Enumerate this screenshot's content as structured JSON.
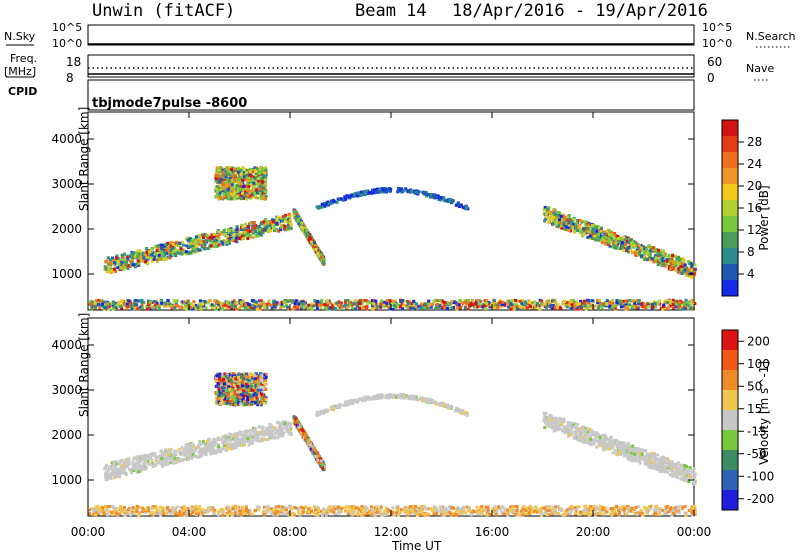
{
  "header": {
    "station": "Unwin (fitACF)",
    "beam": "Beam 14",
    "date_range": "18/Apr/2016 - 19/Apr/2016"
  },
  "top_panels": {
    "nsky_label": "N.Sky",
    "nsearch_label": "N.Search",
    "noise_ticks_left": [
      "10^5",
      "10^0"
    ],
    "noise_ticks_right": [
      "10^5",
      "10^0"
    ],
    "freq_label_1": "Freq.",
    "freq_label_2": "[MHz]",
    "freq_ticks": [
      "18",
      "8"
    ],
    "nave_ticks": [
      "60",
      "0"
    ],
    "nave_label": "Nave",
    "cpid_label": "CPID",
    "cpid_value": "tbjmode7pulse  -8600"
  },
  "chart_data": [
    {
      "type": "heatmap",
      "name": "power",
      "ylabel": "Slant Range [km]",
      "xlabel": "",
      "y_ticks": [
        "1000",
        "2000",
        "3000",
        "4000"
      ],
      "ylim": [
        200,
        4600
      ],
      "colorbar": {
        "label": "Power [dB]",
        "ticks": [
          "4",
          "8",
          "12",
          "16",
          "20",
          "24",
          "28"
        ],
        "range": [
          0,
          32
        ],
        "colors": [
          "#1428e6",
          "#1e5ab4",
          "#2e8c8c",
          "#4aa05a",
          "#78c83c",
          "#b4d232",
          "#f0c81e",
          "#f09628",
          "#f06e1e",
          "#e63c14",
          "#d21414"
        ]
      },
      "features": [
        {
          "desc": "band",
          "x_hours": [
            0.6,
            8.0
          ],
          "range_km": [
            1200,
            2400
          ],
          "level": "high"
        },
        {
          "desc": "band",
          "x_hours": [
            5.0,
            7.0
          ],
          "range_km": [
            2700,
            3400
          ],
          "level": "high"
        },
        {
          "desc": "descending",
          "x_hours": [
            8.1,
            9.3
          ],
          "range_km": [
            1300,
            2400
          ],
          "level": "high"
        },
        {
          "desc": "arc",
          "x_hours": [
            9.0,
            15.0
          ],
          "range_km": [
            2500,
            2900
          ],
          "level": "low"
        },
        {
          "desc": "band",
          "x_hours": [
            18.0,
            24.0
          ],
          "range_km": [
            1100,
            2600
          ],
          "level": "high"
        },
        {
          "desc": "ground",
          "x_hours": [
            0.0,
            24.0
          ],
          "range_km": [
            250,
            450
          ],
          "level": "mixed"
        }
      ]
    },
    {
      "type": "heatmap",
      "name": "velocity",
      "ylabel": "Slant Range [km]",
      "xlabel": "Time UT",
      "x_ticks": [
        "00:00",
        "04:00",
        "08:00",
        "12:00",
        "16:00",
        "20:00",
        "00:00"
      ],
      "y_ticks": [
        "1000",
        "2000",
        "3000",
        "4000"
      ],
      "ylim": [
        200,
        4600
      ],
      "colorbar": {
        "label": "Velocity [m s^-1]",
        "ticks": [
          "200",
          "100",
          "50",
          "15",
          "-15",
          "-50",
          "-100",
          "-200"
        ],
        "colors": [
          "#1e1edc",
          "#2d64b4",
          "#3c8c64",
          "#78c83c",
          "#c8c8c8",
          "#f0c850",
          "#f08c28",
          "#f05a14",
          "#dc1414"
        ]
      },
      "features": [
        {
          "desc": "band",
          "x_hours": [
            0.6,
            8.0
          ],
          "range_km": [
            1200,
            2400
          ],
          "velocity": "near-zero"
        },
        {
          "desc": "band",
          "x_hours": [
            5.0,
            7.0
          ],
          "range_km": [
            2700,
            3400
          ],
          "velocity": "mixed"
        },
        {
          "desc": "descending",
          "x_hours": [
            8.1,
            9.3
          ],
          "range_km": [
            1300,
            2400
          ],
          "velocity": "mixed"
        },
        {
          "desc": "arc",
          "x_hours": [
            9.0,
            15.0
          ],
          "range_km": [
            2500,
            2900
          ],
          "velocity": "near-zero"
        },
        {
          "desc": "band",
          "x_hours": [
            18.0,
            24.0
          ],
          "range_km": [
            1100,
            2600
          ],
          "velocity": "near-zero"
        },
        {
          "desc": "ground",
          "x_hours": [
            0.0,
            24.0
          ],
          "range_km": [
            250,
            450
          ],
          "velocity": "low"
        }
      ]
    }
  ]
}
